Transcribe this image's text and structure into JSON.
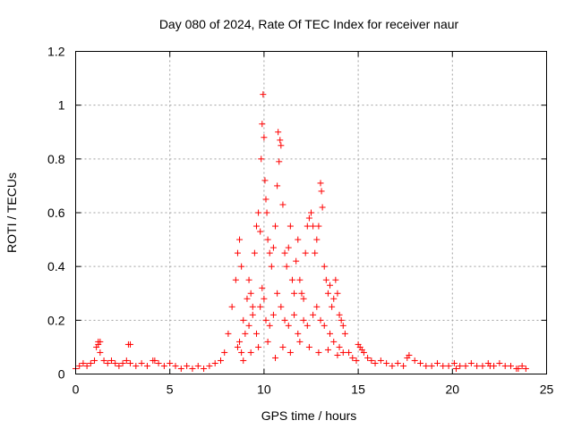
{
  "chart_data": {
    "type": "scatter",
    "title": "Day 080 of 2024, Rate Of TEC Index for receiver naur",
    "xlabel": "GPS time / hours",
    "ylabel": "ROTI / TECUs",
    "xlim": [
      0,
      25
    ],
    "ylim": [
      0,
      1.2
    ],
    "xticks": [
      0,
      5,
      10,
      15,
      20,
      25
    ],
    "xtick_labels": [
      "0",
      "5",
      "10",
      "15",
      "20",
      "25"
    ],
    "yticks": [
      0,
      0.2,
      0.4,
      0.6,
      0.8,
      1.0,
      1.2
    ],
    "ytick_labels": [
      "0",
      "0.2",
      "0.4",
      "0.6",
      "0.8",
      "1",
      "1.2"
    ],
    "grid": true,
    "marker": "plus",
    "marker_color": "#ff0000",
    "series": [
      {
        "x": [
          0.0,
          0.2,
          0.4,
          0.6,
          0.8,
          1.0,
          1.1,
          1.2,
          1.3,
          1.5,
          1.7,
          1.9,
          2.1,
          2.3,
          2.5,
          2.7,
          2.8,
          2.9,
          3.2,
          3.5,
          3.8,
          4.1,
          4.4,
          4.7,
          5.0,
          5.3,
          5.6,
          5.9,
          6.2,
          6.5,
          6.8,
          7.1,
          7.4,
          7.7,
          7.9,
          8.1,
          8.3,
          8.5,
          8.6,
          8.7,
          8.8,
          8.9,
          9.0,
          9.1,
          9.2,
          9.3,
          9.4,
          9.5,
          9.6,
          9.7,
          9.8,
          9.85,
          9.9,
          9.95,
          10.0,
          10.05,
          10.1,
          10.15,
          10.2,
          10.3,
          10.4,
          10.5,
          10.6,
          10.7,
          10.75,
          10.8,
          10.85,
          10.9,
          11.0,
          11.1,
          11.2,
          11.3,
          11.4,
          11.5,
          11.6,
          11.7,
          11.8,
          11.9,
          12.0,
          12.1,
          12.2,
          12.3,
          12.4,
          12.5,
          12.6,
          12.7,
          12.8,
          12.9,
          13.0,
          13.05,
          13.1,
          13.2,
          13.3,
          13.4,
          13.5,
          13.6,
          13.7,
          13.8,
          13.9,
          14.0,
          14.1,
          14.2,
          14.3,
          14.5,
          14.7,
          14.9,
          15.1,
          15.3,
          15.5,
          15.7,
          15.9,
          16.2,
          16.5,
          16.8,
          17.1,
          17.4,
          17.7,
          18.0,
          18.3,
          18.6,
          18.9,
          19.2,
          19.5,
          19.8,
          20.1,
          20.4,
          20.7,
          21.0,
          21.3,
          21.6,
          21.9,
          22.2,
          22.5,
          22.8,
          23.1,
          23.4,
          23.7,
          23.9,
          8.6,
          8.7,
          8.8,
          9.2,
          9.4,
          9.6,
          9.8,
          9.9,
          10.0,
          10.1,
          10.3,
          10.5,
          10.7,
          10.9,
          11.1,
          11.3,
          11.6,
          11.8,
          12.1,
          12.3,
          12.6,
          12.8,
          13.0,
          13.2,
          13.5,
          13.7,
          14.0,
          14.2,
          8.9,
          9.3,
          9.7,
          10.2,
          10.6,
          11.0,
          11.4,
          11.9,
          12.4,
          12.9,
          13.4,
          13.9,
          1.2,
          1.3,
          2.9,
          4.2,
          15.0,
          15.2,
          17.6,
          20.2,
          22.0,
          23.5
        ],
        "y": [
          0.02,
          0.03,
          0.04,
          0.03,
          0.04,
          0.05,
          0.1,
          0.12,
          0.08,
          0.05,
          0.04,
          0.05,
          0.04,
          0.03,
          0.04,
          0.05,
          0.11,
          0.04,
          0.03,
          0.04,
          0.03,
          0.05,
          0.04,
          0.03,
          0.04,
          0.03,
          0.02,
          0.03,
          0.02,
          0.03,
          0.02,
          0.03,
          0.04,
          0.05,
          0.08,
          0.15,
          0.25,
          0.35,
          0.45,
          0.5,
          0.4,
          0.2,
          0.15,
          0.28,
          0.35,
          0.3,
          0.25,
          0.45,
          0.55,
          0.6,
          0.53,
          0.8,
          0.93,
          1.04,
          0.88,
          0.72,
          0.65,
          0.6,
          0.5,
          0.45,
          0.4,
          0.47,
          0.55,
          0.7,
          0.9,
          0.79,
          0.87,
          0.85,
          0.63,
          0.45,
          0.4,
          0.47,
          0.55,
          0.35,
          0.3,
          0.42,
          0.5,
          0.35,
          0.3,
          0.28,
          0.45,
          0.55,
          0.58,
          0.6,
          0.55,
          0.45,
          0.5,
          0.55,
          0.71,
          0.68,
          0.62,
          0.4,
          0.35,
          0.3,
          0.33,
          0.25,
          0.28,
          0.35,
          0.3,
          0.22,
          0.2,
          0.18,
          0.15,
          0.08,
          0.06,
          0.05,
          0.1,
          0.08,
          0.06,
          0.05,
          0.04,
          0.05,
          0.04,
          0.03,
          0.04,
          0.03,
          0.07,
          0.05,
          0.04,
          0.03,
          0.03,
          0.04,
          0.03,
          0.03,
          0.04,
          0.03,
          0.03,
          0.04,
          0.03,
          0.03,
          0.04,
          0.03,
          0.04,
          0.03,
          0.03,
          0.02,
          0.03,
          0.02,
          0.1,
          0.12,
          0.08,
          0.18,
          0.22,
          0.15,
          0.25,
          0.32,
          0.28,
          0.2,
          0.18,
          0.22,
          0.3,
          0.25,
          0.2,
          0.18,
          0.22,
          0.15,
          0.2,
          0.18,
          0.22,
          0.25,
          0.2,
          0.18,
          0.15,
          0.12,
          0.1,
          0.08,
          0.05,
          0.08,
          0.1,
          0.12,
          0.06,
          0.1,
          0.08,
          0.12,
          0.1,
          0.08,
          0.09,
          0.07,
          0.11,
          0.12,
          0.11,
          0.05,
          0.11,
          0.09,
          0.06,
          0.02,
          0.03,
          0.02
        ]
      }
    ]
  }
}
